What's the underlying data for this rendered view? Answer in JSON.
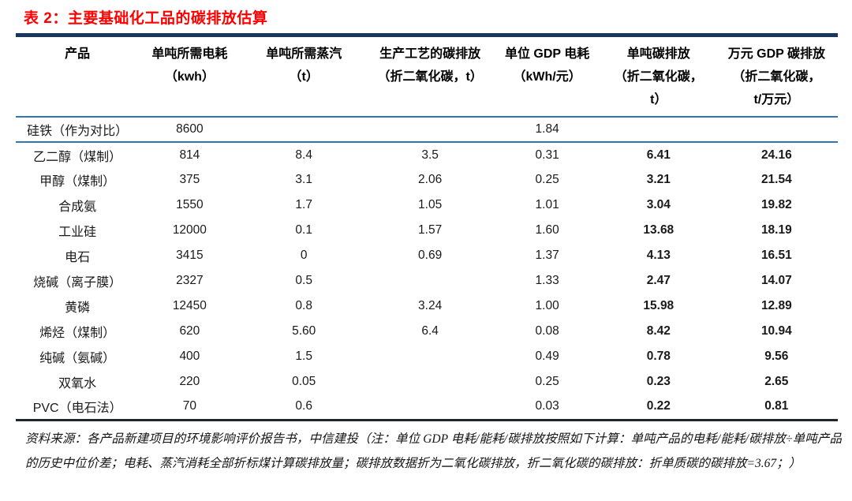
{
  "page": {
    "title": "表 2：主要基础化工品的碳排放估算"
  },
  "table": {
    "columns": [
      {
        "lines": [
          "产品"
        ]
      },
      {
        "lines": [
          "单吨所需电耗",
          "（kwh）"
        ]
      },
      {
        "lines": [
          "单吨所需蒸汽",
          "（t）"
        ]
      },
      {
        "lines": [
          "生产工艺的碳排放",
          "（折二氧化碳，t）"
        ]
      },
      {
        "lines": [
          "单位 GDP 电耗",
          "（kWh/元）"
        ]
      },
      {
        "lines": [
          "单吨碳排放",
          "（折二氧化碳，",
          "t）"
        ]
      },
      {
        "lines": [
          "万元 GDP 碳排放",
          "（折二氧化碳，",
          "t/万元）"
        ]
      }
    ],
    "rows": [
      {
        "cells": [
          "硅铁（作为对比）",
          "8600",
          "",
          "",
          "1.84",
          "",
          ""
        ],
        "separator_below": true
      },
      {
        "cells": [
          "乙二醇（煤制）",
          "814",
          "8.4",
          "3.5",
          "0.31",
          "6.41",
          "24.16"
        ]
      },
      {
        "cells": [
          "甲醇（煤制）",
          "375",
          "3.1",
          "2.06",
          "0.25",
          "3.21",
          "21.54"
        ]
      },
      {
        "cells": [
          "合成氨",
          "1550",
          "1.7",
          "1.05",
          "1.01",
          "3.04",
          "19.82"
        ]
      },
      {
        "cells": [
          "工业硅",
          "12000",
          "0.1",
          "1.57",
          "1.60",
          "13.68",
          "18.19"
        ]
      },
      {
        "cells": [
          "电石",
          "3415",
          "0",
          "0.69",
          "1.37",
          "4.13",
          "16.51"
        ]
      },
      {
        "cells": [
          "烧碱（离子膜）",
          "2327",
          "0.5",
          "",
          "1.33",
          "2.47",
          "14.07"
        ]
      },
      {
        "cells": [
          "黄磷",
          "12450",
          "0.8",
          "3.24",
          "1.00",
          "15.98",
          "12.89"
        ]
      },
      {
        "cells": [
          "烯烃（煤制）",
          "620",
          "5.60",
          "6.4",
          "0.08",
          "8.42",
          "10.94"
        ]
      },
      {
        "cells": [
          "纯碱（氨碱）",
          "400",
          "1.5",
          "",
          "0.49",
          "0.78",
          "9.56"
        ]
      },
      {
        "cells": [
          "双氧水",
          "220",
          "0.05",
          "",
          "0.25",
          "0.23",
          "2.65"
        ]
      },
      {
        "cells": [
          "PVC（电石法）",
          "70",
          "0.6",
          "",
          "0.03",
          "0.22",
          "0.81"
        ]
      }
    ]
  },
  "footnote": "资料来源：各产品新建项目的环境影响评价报告书，中信建投（注：单位 GDP 电耗/能耗/碳排放按照如下计算：单吨产品的电耗/能耗/碳排放÷单吨产品的历史中位价差；电耗、蒸汽消耗全部折标煤计算碳排放量；碳排放数据折为二氧化碳排放，折二氧化碳的碳排放：折单质碳的碳排放=3.67；）",
  "colors": {
    "title_red": "#fe0000",
    "border_dark_blue": "#17375e",
    "border_steel_blue": "#2e75b6",
    "text": "#1a1a1a"
  }
}
